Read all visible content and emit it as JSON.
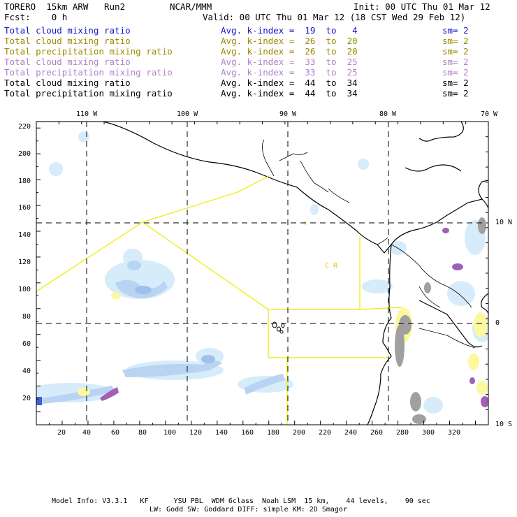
{
  "header": {
    "model": "TORERO  15km ARW   Run2",
    "institution": "NCAR/MMM",
    "init": "Init: 00 UTC Thu 01 Mar 12",
    "fcst": "Fcst:    0 h",
    "valid": "Valid: 00 UTC Thu 01 Mar 12 (18 CST Wed 29 Feb 12)"
  },
  "legend": [
    {
      "field": "Total cloud mixing ratio",
      "kidx": "Avg. k-index =  19  to   4",
      "sm": "sm= 2",
      "color": "#1414c8"
    },
    {
      "field": "Total cloud mixing ratio",
      "kidx": "Avg. k-index =  26  to  20",
      "sm": "sm= 2",
      "color": "#9a8a00"
    },
    {
      "field": "Total precipitation mixing ratio",
      "kidx": "Avg. k-index =  26  to  20",
      "sm": "sm= 2",
      "color": "#9a8a00"
    },
    {
      "field": "Total cloud mixing ratio",
      "kidx": "Avg. k-index =  33  to  25",
      "sm": "sm= 2",
      "color": "#b080c8"
    },
    {
      "field": "Total precipitation mixing ratio",
      "kidx": "Avg. k-index =  33  to  25",
      "sm": "sm= 2",
      "color": "#b080c8"
    },
    {
      "field": "Total cloud mixing ratio",
      "kidx": "Avg. k-index =  44  to  34",
      "sm": "sm= 2",
      "color": "#000000"
    },
    {
      "field": "Total precipitation mixing ratio",
      "kidx": "Avg. k-index =  44  to  34",
      "sm": "sm= 2",
      "color": "#000000"
    }
  ],
  "map": {
    "lon_labels": [
      "110 W",
      "100 W",
      "90 W",
      "80 W",
      "70 W"
    ],
    "lat_labels": [
      "10 N",
      "0",
      "10 S"
    ],
    "x_ticks": [
      "20",
      "40",
      "60",
      "80",
      "100",
      "120",
      "140",
      "160",
      "180",
      "200",
      "220",
      "240",
      "260",
      "280",
      "300",
      "320"
    ],
    "y_ticks": [
      "220",
      "200",
      "180",
      "160",
      "140",
      "120",
      "100",
      "80",
      "60",
      "40",
      "20"
    ],
    "region_label": "C R"
  },
  "footer": {
    "line1": "Model Info: V3.3.1   KF      YSU PBL  WDM 6class  Noah LSM  15 km,    44 levels,    90 sec",
    "line2": "LW: Godd SW: Goddard DIFF: simple KM: 2D Smagor"
  }
}
